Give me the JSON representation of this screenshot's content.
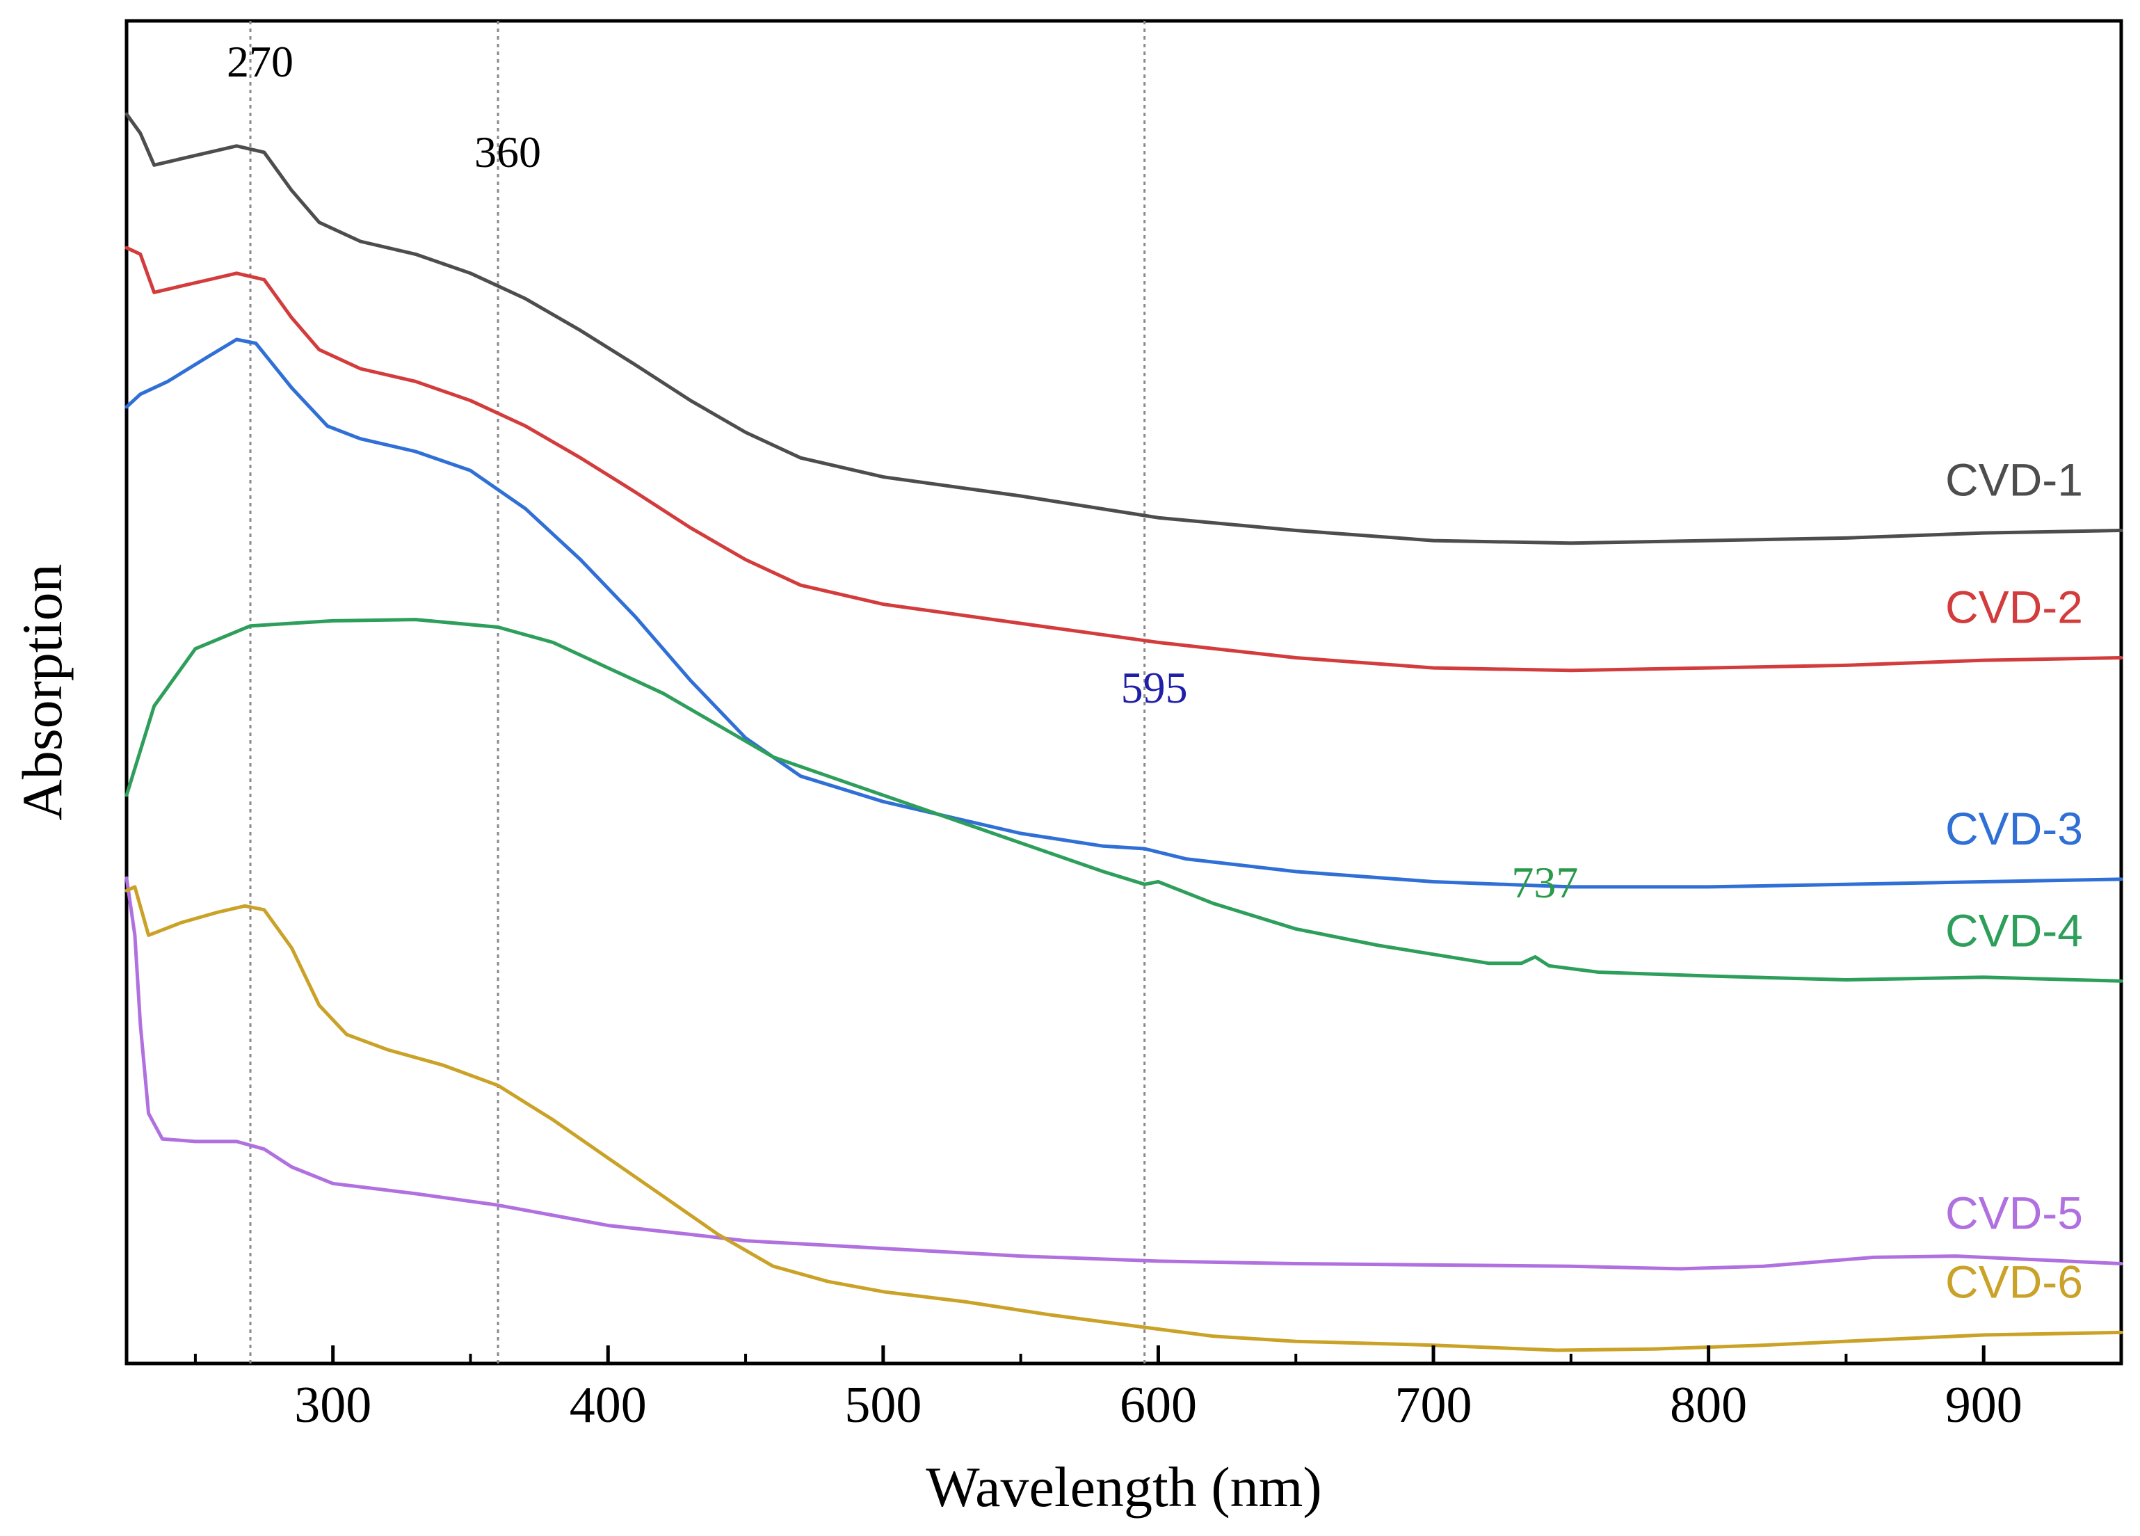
{
  "chart_data": {
    "type": "line",
    "title": "",
    "xlabel": "Wavelength (nm)",
    "ylabel": "Absorption",
    "xlim": [
      225,
      950
    ],
    "ylim": [
      0,
      100
    ],
    "x_ticks": [
      300,
      400,
      500,
      600,
      700,
      800,
      900
    ],
    "x_minor_ticks": [
      250,
      350,
      450,
      550,
      650,
      750,
      850
    ],
    "y_ticks": [],
    "grid": false,
    "legend": "right-side inline labels",
    "reference_lines": [
      270,
      360,
      595
    ],
    "annotations": [
      {
        "text": "270",
        "x": 270,
        "color": "#000000"
      },
      {
        "text": "360",
        "x": 360,
        "color": "#000000"
      },
      {
        "text": "595",
        "x": 595,
        "color": "#1f1fa8"
      },
      {
        "text": "737",
        "x": 737,
        "color": "#2a9a4a"
      }
    ],
    "series": [
      {
        "name": "CVD-1",
        "color": "#4d4d4d",
        "points": [
          [
            225,
            96.5
          ],
          [
            230,
            95
          ],
          [
            235,
            92.5
          ],
          [
            245,
            93
          ],
          [
            255,
            93.5
          ],
          [
            265,
            94
          ],
          [
            275,
            93.5
          ],
          [
            285,
            90.5
          ],
          [
            295,
            88
          ],
          [
            310,
            86.5
          ],
          [
            330,
            85.5
          ],
          [
            350,
            84
          ],
          [
            370,
            82
          ],
          [
            390,
            79.5
          ],
          [
            410,
            76.8
          ],
          [
            430,
            74
          ],
          [
            450,
            71.5
          ],
          [
            470,
            69.5
          ],
          [
            500,
            68
          ],
          [
            550,
            66.5
          ],
          [
            600,
            64.8
          ],
          [
            650,
            63.8
          ],
          [
            700,
            63
          ],
          [
            750,
            62.8
          ],
          [
            800,
            63
          ],
          [
            850,
            63.2
          ],
          [
            900,
            63.6
          ],
          [
            950,
            63.8
          ]
        ]
      },
      {
        "name": "CVD-2",
        "color": "#d33c3c",
        "points": [
          [
            225,
            86
          ],
          [
            230,
            85.5
          ],
          [
            235,
            82.5
          ],
          [
            245,
            83
          ],
          [
            255,
            83.5
          ],
          [
            265,
            84
          ],
          [
            275,
            83.5
          ],
          [
            285,
            80.5
          ],
          [
            295,
            78
          ],
          [
            310,
            76.5
          ],
          [
            330,
            75.5
          ],
          [
            350,
            74
          ],
          [
            370,
            72
          ],
          [
            390,
            69.5
          ],
          [
            410,
            66.8
          ],
          [
            430,
            64
          ],
          [
            450,
            61.5
          ],
          [
            470,
            59.5
          ],
          [
            500,
            58
          ],
          [
            550,
            56.5
          ],
          [
            600,
            55
          ],
          [
            650,
            53.8
          ],
          [
            700,
            53
          ],
          [
            750,
            52.8
          ],
          [
            800,
            53
          ],
          [
            850,
            53.2
          ],
          [
            900,
            53.6
          ],
          [
            950,
            53.8
          ]
        ]
      },
      {
        "name": "CVD-3",
        "color": "#2f6fd6",
        "points": [
          [
            225,
            73.5
          ],
          [
            230,
            74.5
          ],
          [
            240,
            75.5
          ],
          [
            255,
            77.5
          ],
          [
            265,
            78.8
          ],
          [
            272,
            78.5
          ],
          [
            285,
            75
          ],
          [
            298,
            72
          ],
          [
            310,
            71
          ],
          [
            330,
            70
          ],
          [
            350,
            68.5
          ],
          [
            370,
            65.5
          ],
          [
            390,
            61.5
          ],
          [
            410,
            57
          ],
          [
            430,
            52
          ],
          [
            450,
            47.5
          ],
          [
            470,
            44.5
          ],
          [
            500,
            42.5
          ],
          [
            550,
            40
          ],
          [
            580,
            39
          ],
          [
            595,
            38.8
          ],
          [
            610,
            38
          ],
          [
            650,
            37
          ],
          [
            700,
            36.2
          ],
          [
            750,
            35.8
          ],
          [
            800,
            35.8
          ],
          [
            850,
            36
          ],
          [
            900,
            36.2
          ],
          [
            950,
            36.4
          ]
        ]
      },
      {
        "name": "CVD-4",
        "color": "#2e9e5b",
        "points": [
          [
            225,
            43
          ],
          [
            235,
            50
          ],
          [
            250,
            54.5
          ],
          [
            270,
            56.3
          ],
          [
            300,
            56.7
          ],
          [
            330,
            56.8
          ],
          [
            360,
            56.2
          ],
          [
            380,
            55
          ],
          [
            400,
            53
          ],
          [
            420,
            51
          ],
          [
            440,
            48.5
          ],
          [
            460,
            46
          ],
          [
            480,
            44.5
          ],
          [
            500,
            43
          ],
          [
            540,
            40
          ],
          [
            580,
            37
          ],
          [
            595,
            36
          ],
          [
            600,
            36.2
          ],
          [
            620,
            34.5
          ],
          [
            650,
            32.5
          ],
          [
            680,
            31.2
          ],
          [
            700,
            30.5
          ],
          [
            720,
            29.8
          ],
          [
            732,
            29.8
          ],
          [
            737,
            30.3
          ],
          [
            742,
            29.6
          ],
          [
            760,
            29.1
          ],
          [
            800,
            28.8
          ],
          [
            850,
            28.5
          ],
          [
            900,
            28.7
          ],
          [
            950,
            28.4
          ]
        ]
      },
      {
        "name": "CVD-5",
        "color": "#b070e0",
        "points": [
          [
            225,
            36.5
          ],
          [
            228,
            32
          ],
          [
            230,
            25
          ],
          [
            233,
            18
          ],
          [
            238,
            16
          ],
          [
            250,
            15.8
          ],
          [
            265,
            15.8
          ],
          [
            275,
            15.2
          ],
          [
            285,
            13.8
          ],
          [
            300,
            12.5
          ],
          [
            330,
            11.7
          ],
          [
            360,
            10.8
          ],
          [
            380,
            10
          ],
          [
            400,
            9.2
          ],
          [
            430,
            8.5
          ],
          [
            450,
            8
          ],
          [
            500,
            7.4
          ],
          [
            550,
            6.8
          ],
          [
            600,
            6.4
          ],
          [
            650,
            6.2
          ],
          [
            700,
            6.1
          ],
          [
            750,
            6
          ],
          [
            790,
            5.8
          ],
          [
            820,
            6
          ],
          [
            860,
            6.7
          ],
          [
            890,
            6.8
          ],
          [
            920,
            6.5
          ],
          [
            950,
            6.2
          ]
        ]
      },
      {
        "name": "CVD-6",
        "color": "#c9a227",
        "points": [
          [
            225,
            35.5
          ],
          [
            228,
            35.8
          ],
          [
            233,
            32
          ],
          [
            245,
            33
          ],
          [
            258,
            33.8
          ],
          [
            268,
            34.3
          ],
          [
            275,
            34
          ],
          [
            285,
            31
          ],
          [
            295,
            26.5
          ],
          [
            305,
            24.2
          ],
          [
            320,
            23
          ],
          [
            340,
            21.8
          ],
          [
            360,
            20.2
          ],
          [
            380,
            17.5
          ],
          [
            400,
            14.5
          ],
          [
            420,
            11.5
          ],
          [
            440,
            8.5
          ],
          [
            460,
            6
          ],
          [
            480,
            4.8
          ],
          [
            500,
            4
          ],
          [
            530,
            3.2
          ],
          [
            560,
            2.2
          ],
          [
            595,
            1.2
          ],
          [
            620,
            0.5
          ],
          [
            650,
            0.1
          ],
          [
            700,
            -0.2
          ],
          [
            745,
            -0.6
          ],
          [
            780,
            -0.5
          ],
          [
            820,
            -0.2
          ],
          [
            860,
            0.2
          ],
          [
            900,
            0.6
          ],
          [
            950,
            0.8
          ]
        ]
      }
    ]
  }
}
